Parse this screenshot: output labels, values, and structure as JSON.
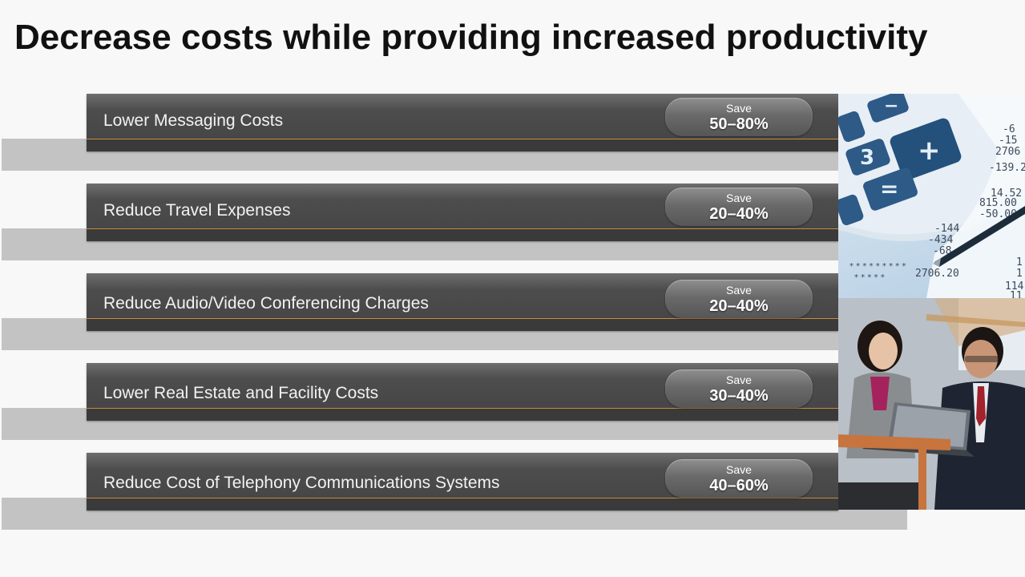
{
  "title": "Decrease costs while providing increased productivity",
  "rows": [
    {
      "label": "Lower Messaging Costs",
      "save": "Save",
      "percent": "50–80%"
    },
    {
      "label": "Reduce Travel Expenses",
      "save": "Save",
      "percent": "20–40%"
    },
    {
      "label": "Reduce Audio/Video Conferencing Charges",
      "save": "Save",
      "percent": "20–40%"
    },
    {
      "label": "Lower Real Estate and Facility Costs",
      "save": "Save",
      "percent": "30–40%"
    },
    {
      "label": "Reduce Cost of Telephony Communications Systems",
      "save": "Save",
      "percent": "40–60%"
    }
  ],
  "calculator_keys": [
    "−",
    "3",
    "+",
    "="
  ],
  "receipt_figures": [
    "-6",
    "-15",
    "2706",
    "-139.2",
    "14.52",
    "815.00",
    "-50.00",
    "-144",
    "-434",
    "-68",
    "2706.20",
    "1",
    "1",
    "114",
    "11"
  ]
}
